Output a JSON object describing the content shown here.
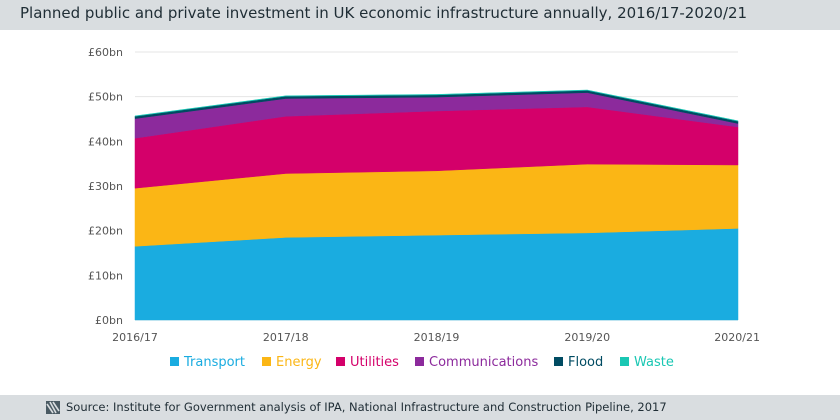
{
  "title": "Planned public and private investment in UK economic infrastructure annually, 2016/17-2020/21",
  "source": "Source: Institute for Government analysis of IPA, National Infrastructure and Construction Pipeline, 2017",
  "chart_data": {
    "type": "area",
    "stacked": true,
    "categories": [
      "2016/17",
      "2017/18",
      "2018/19",
      "2019/20",
      "2020/21"
    ],
    "y_ticks": [
      "£0bn",
      "£10bn",
      "£20bn",
      "£30bn",
      "£40bn",
      "£50bn",
      "£60bn"
    ],
    "ylim": [
      0,
      60
    ],
    "grid": true,
    "legend_position": "bottom",
    "series": [
      {
        "name": "Transport",
        "color": "#1aace0",
        "values": [
          16.5,
          18.5,
          19.0,
          19.5,
          20.5
        ]
      },
      {
        "name": "Energy",
        "color": "#fbb615",
        "values": [
          13.0,
          14.3,
          14.4,
          15.4,
          14.2
        ]
      },
      {
        "name": "Utilities",
        "color": "#d4006a",
        "values": [
          11.2,
          12.8,
          13.4,
          12.8,
          8.5
        ]
      },
      {
        "name": "Communications",
        "color": "#8c2a9c",
        "values": [
          4.4,
          4.0,
          3.1,
          3.2,
          0.8
        ]
      },
      {
        "name": "Flood",
        "color": "#004b62",
        "values": [
          0.5,
          0.5,
          0.5,
          0.5,
          0.5
        ]
      },
      {
        "name": "Waste",
        "color": "#1ac7b3",
        "values": [
          0.1,
          0.1,
          0.1,
          0.1,
          0.1
        ]
      }
    ]
  }
}
